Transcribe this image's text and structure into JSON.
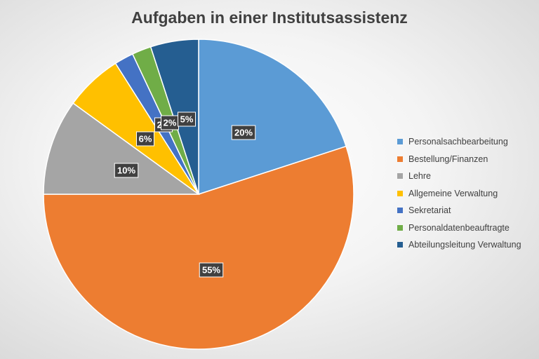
{
  "chart_data": {
    "type": "pie",
    "title": "Aufgaben in einer Institutsassistenz",
    "slices": [
      {
        "label": "Personalsachbearbeitung",
        "value": 20,
        "display": "20%",
        "color": "#5B9BD5"
      },
      {
        "label": "Bestellung/Finanzen",
        "value": 55,
        "display": "55%",
        "color": "#ED7D31"
      },
      {
        "label": "Lehre",
        "value": 10,
        "display": "10%",
        "color": "#A5A5A5"
      },
      {
        "label": "Allgemeine Verwaltung",
        "value": 6,
        "display": "6%",
        "color": "#FFC000"
      },
      {
        "label": "Sekretariat",
        "value": 2,
        "display": "2%",
        "color": "#4472C4"
      },
      {
        "label": "Personaldatenbeauftragte",
        "value": 2,
        "display": "2%",
        "color": "#70AD47"
      },
      {
        "label": "Abteilungsleitung Verwaltung",
        "value": 5,
        "display": "5%",
        "color": "#255E91"
      }
    ],
    "legend_position": "right"
  }
}
